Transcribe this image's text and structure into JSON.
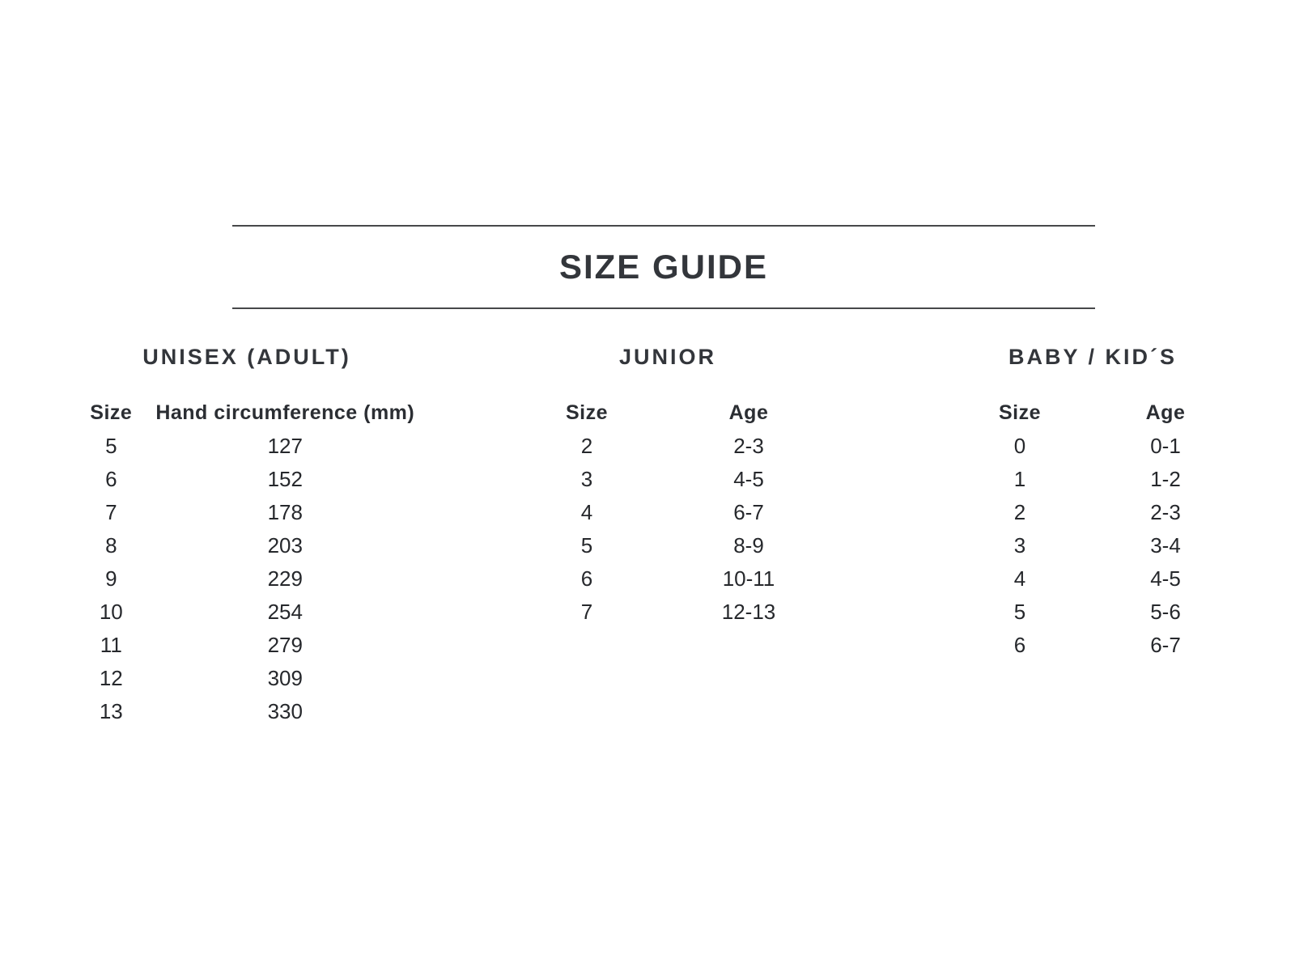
{
  "title": "SIZE GUIDE",
  "colors": {
    "text": "#26282c",
    "heading": "#33363b",
    "rule": "#47484a",
    "background": "#ffffff"
  },
  "sections": [
    {
      "name": "UNISEX (ADULT)",
      "columns": [
        "Size",
        "Hand circumference (mm)"
      ],
      "rows": [
        [
          "5",
          "127"
        ],
        [
          "6",
          "152"
        ],
        [
          "7",
          "178"
        ],
        [
          "8",
          "203"
        ],
        [
          "9",
          "229"
        ],
        [
          "10",
          "254"
        ],
        [
          "11",
          "279"
        ],
        [
          "12",
          "309"
        ],
        [
          "13",
          "330"
        ]
      ]
    },
    {
      "name": "JUNIOR",
      "columns": [
        "Size",
        "Age"
      ],
      "rows": [
        [
          "2",
          "2-3"
        ],
        [
          "3",
          "4-5"
        ],
        [
          "4",
          "6-7"
        ],
        [
          "5",
          "8-9"
        ],
        [
          "6",
          "10-11"
        ],
        [
          "7",
          "12-13"
        ]
      ]
    },
    {
      "name": "BABY / KID´S",
      "columns": [
        "Size",
        "Age"
      ],
      "rows": [
        [
          "0",
          "0-1"
        ],
        [
          "1",
          "1-2"
        ],
        [
          "2",
          "2-3"
        ],
        [
          "3",
          "3-4"
        ],
        [
          "4",
          "4-5"
        ],
        [
          "5",
          "5-6"
        ],
        [
          "6",
          "6-7"
        ]
      ]
    }
  ]
}
